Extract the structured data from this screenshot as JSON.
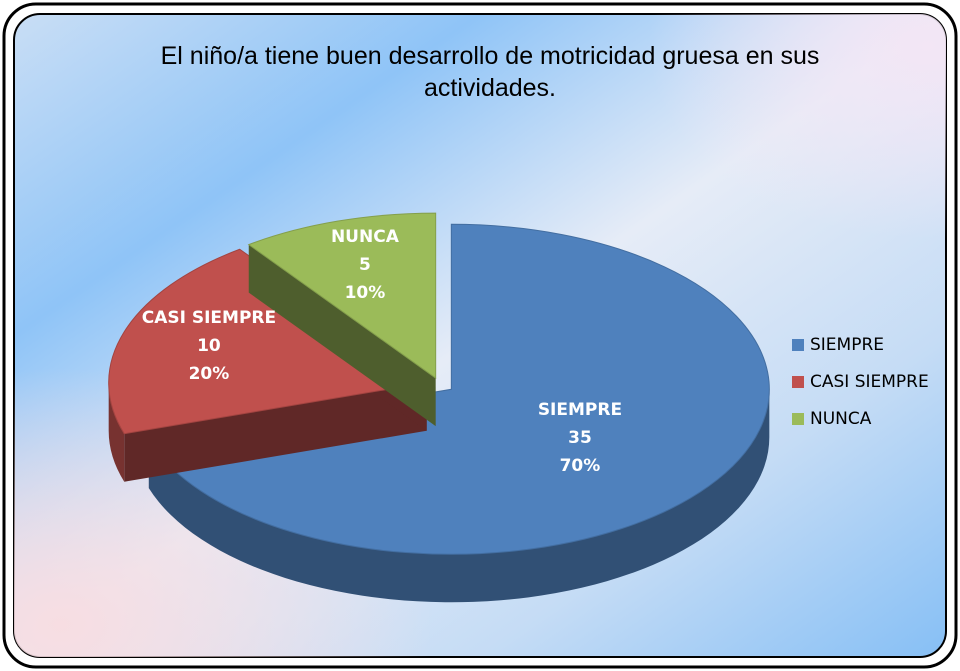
{
  "chart_data": {
    "type": "pie3d",
    "title": "El niño/a tiene buen desarrollo de motricidad gruesa en sus actividades.",
    "categories": [
      "SIEMPRE",
      "CASI SIEMPRE",
      "NUNCA"
    ],
    "values": [
      35,
      10,
      5
    ],
    "percents": [
      70,
      20,
      10
    ],
    "percent_labels": [
      "70%",
      "20%",
      "10%"
    ],
    "colors": [
      "#4f81bd",
      "#c0504d",
      "#9bbb59"
    ],
    "legend": "right"
  }
}
